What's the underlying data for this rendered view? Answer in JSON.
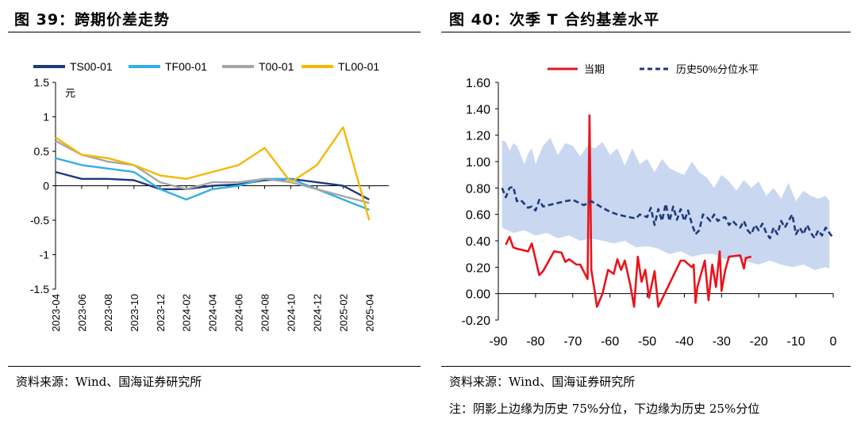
{
  "left": {
    "title": "图 39：跨期价差走势",
    "source": "资料来源：Wind、国海证券研究所"
  },
  "right": {
    "title": "图 40：次季 T 合约基差水平",
    "source": "资料来源：Wind、国海证券研究所",
    "note": "注：阴影上边缘为历史 75%分位，下边缘为历史 25%分位"
  },
  "chart_data": [
    {
      "type": "line",
      "ylabel": "元",
      "ylim": [
        -1.5,
        1.5
      ],
      "yticks": [
        "1.5",
        "1",
        "0.5",
        "0",
        "-0.5",
        "-1",
        "-1.5"
      ],
      "categories": [
        "2023-04",
        "2023-06",
        "2023-08",
        "2023-10",
        "2023-12",
        "2024-02",
        "2024-04",
        "2024-06",
        "2024-08",
        "2024-10",
        "2024-12",
        "2025-02",
        "2025-04"
      ],
      "legend_position": "top",
      "series": [
        {
          "name": "TS00-01",
          "color": "#1f3a7a",
          "values": [
            0.2,
            0.1,
            0.1,
            0.08,
            -0.05,
            -0.05,
            0.0,
            0.02,
            0.08,
            0.1,
            0.05,
            0.0,
            -0.2
          ]
        },
        {
          "name": "TF00-01",
          "color": "#33aee8",
          "values": [
            0.4,
            0.3,
            0.25,
            0.2,
            -0.05,
            -0.2,
            -0.05,
            0.0,
            0.1,
            0.1,
            -0.05,
            -0.2,
            -0.35
          ]
        },
        {
          "name": "T00-01",
          "color": "#a6a6a6",
          "values": [
            0.65,
            0.45,
            0.35,
            0.3,
            0.05,
            -0.05,
            0.05,
            0.05,
            0.1,
            0.05,
            -0.05,
            -0.15,
            -0.25
          ]
        },
        {
          "name": "TL00-01",
          "color": "#f5b800",
          "values": [
            0.7,
            0.45,
            0.4,
            0.3,
            0.15,
            0.1,
            0.2,
            0.3,
            0.55,
            0.05,
            0.3,
            0.85,
            -0.5
          ]
        }
      ]
    },
    {
      "type": "line",
      "ylim": [
        -0.2,
        1.6
      ],
      "yticks": [
        "1.60",
        "1.40",
        "1.20",
        "1.00",
        "0.80",
        "0.60",
        "0.40",
        "0.20",
        "0.00",
        "-0.20"
      ],
      "xlim": [
        -90,
        0
      ],
      "xticks": [
        "-90",
        "-80",
        "-70",
        "-60",
        "-50",
        "-40",
        "-30",
        "-20",
        "-10",
        "0"
      ],
      "legend_position": "top",
      "series": [
        {
          "name": "当期",
          "color": "#e8141c",
          "x": [
            -88,
            -87,
            -86,
            -85,
            -82,
            -81,
            -79,
            -78,
            -77,
            -75,
            -73,
            -72,
            -71,
            -69,
            -68,
            -66,
            -65.5,
            -65,
            -64,
            -63.5,
            -62,
            -60.5,
            -59,
            -58,
            -57,
            -56,
            -54.5,
            -53.5,
            -52.5,
            -51.5,
            -50.5,
            -49.5,
            -48,
            -47,
            -41,
            -40,
            -38,
            -37.5,
            -37,
            -36.5,
            -35.5,
            -34.5,
            -33.5,
            -32.5,
            -31.5,
            -30.5,
            -30,
            -29,
            -28,
            -25,
            -24,
            -23.5,
            -22
          ],
          "y": [
            0.37,
            0.43,
            0.35,
            0.34,
            0.32,
            0.38,
            0.14,
            0.17,
            0.22,
            0.32,
            0.31,
            0.24,
            0.26,
            0.22,
            0.22,
            0.11,
            1.35,
            0.18,
            0.0,
            -0.1,
            0.0,
            0.18,
            0.15,
            0.26,
            0.18,
            0.25,
            0.06,
            -0.1,
            0.28,
            0.09,
            0.18,
            -0.03,
            0.17,
            -0.1,
            0.25,
            0.25,
            0.2,
            0.22,
            -0.07,
            0.05,
            0.15,
            0.25,
            -0.05,
            0.22,
            0.05,
            0.32,
            0.02,
            0.18,
            0.28,
            0.29,
            0.19,
            0.27,
            0.28
          ]
        },
        {
          "name": "历史50%分位水平",
          "color": "#1f3a7a",
          "x": [
            -89,
            -88,
            -87,
            -86,
            -85,
            -84,
            -83,
            -82,
            -81,
            -80,
            -79,
            -78,
            -75,
            -72,
            -70,
            -67,
            -65,
            -62,
            -60,
            -58,
            -55,
            -53,
            -52,
            -50,
            -49,
            -48,
            -47,
            -46,
            -45,
            -44,
            -43,
            -42,
            -41,
            -40,
            -39,
            -38,
            -37,
            -36,
            -35,
            -34,
            -33,
            -32,
            -31,
            -30,
            -29,
            -28,
            -27,
            -26,
            -25,
            -24,
            -23,
            -22,
            -21,
            -20,
            -19,
            -18,
            -17,
            -16,
            -15,
            -14,
            -13,
            -12,
            -11,
            -10,
            -9,
            -8,
            -7,
            -6,
            -5,
            -4,
            -3,
            -2,
            -1,
            0
          ],
          "y": [
            0.8,
            0.73,
            0.8,
            0.81,
            0.7,
            0.71,
            0.68,
            0.65,
            0.66,
            0.63,
            0.71,
            0.66,
            0.68,
            0.7,
            0.71,
            0.67,
            0.7,
            0.65,
            0.62,
            0.6,
            0.58,
            0.57,
            0.6,
            0.58,
            0.65,
            0.52,
            0.64,
            0.55,
            0.68,
            0.55,
            0.66,
            0.56,
            0.64,
            0.55,
            0.63,
            0.53,
            0.45,
            0.48,
            0.6,
            0.58,
            0.55,
            0.6,
            0.55,
            0.57,
            0.58,
            0.52,
            0.55,
            0.52,
            0.5,
            0.55,
            0.48,
            0.45,
            0.52,
            0.48,
            0.53,
            0.46,
            0.42,
            0.5,
            0.45,
            0.55,
            0.5,
            0.55,
            0.6,
            0.45,
            0.5,
            0.45,
            0.52,
            0.46,
            0.42,
            0.48,
            0.44,
            0.5,
            0.46,
            0.42
          ]
        }
      ],
      "band_upper_x": [
        -89,
        -88,
        -87,
        -86,
        -85,
        -84,
        -83,
        -82,
        -81,
        -80,
        -78,
        -76,
        -74,
        -72,
        -70,
        -68,
        -66,
        -64,
        -62,
        -60,
        -58,
        -56,
        -54,
        -52,
        -50,
        -48,
        -46,
        -44,
        -42,
        -40,
        -38,
        -36,
        -34,
        -32,
        -30,
        -28,
        -26,
        -24,
        -22,
        -20,
        -18,
        -16,
        -14,
        -12,
        -10,
        -8,
        -6,
        -4,
        -2,
        -1
      ],
      "band_upper_y": [
        1.16,
        1.15,
        1.08,
        1.14,
        1.12,
        1.05,
        0.98,
        1.06,
        1.1,
        0.98,
        1.12,
        1.18,
        1.05,
        1.14,
        1.12,
        1.04,
        1.12,
        1.1,
        1.15,
        1.05,
        1.1,
        0.97,
        1.1,
        0.98,
        1.02,
        0.92,
        1.02,
        0.95,
        0.92,
        0.9,
        1.0,
        0.92,
        0.88,
        0.8,
        0.9,
        0.85,
        0.78,
        0.86,
        0.8,
        0.85,
        0.74,
        0.8,
        0.72,
        0.84,
        0.7,
        0.78,
        0.74,
        0.72,
        0.74,
        0.7
      ],
      "band_lower_x": [
        -89,
        -86,
        -83,
        -80,
        -77,
        -74,
        -71,
        -68,
        -65,
        -62,
        -59,
        -56,
        -53,
        -50,
        -47,
        -44,
        -41,
        -38,
        -35,
        -32,
        -29,
        -26,
        -23,
        -20,
        -17,
        -14,
        -11,
        -8,
        -5,
        -2,
        -1
      ],
      "band_lower_y": [
        0.5,
        0.46,
        0.48,
        0.44,
        0.46,
        0.42,
        0.44,
        0.4,
        0.42,
        0.4,
        0.38,
        0.4,
        0.35,
        0.36,
        0.34,
        0.3,
        0.32,
        0.28,
        0.3,
        0.3,
        0.26,
        0.28,
        0.24,
        0.22,
        0.25,
        0.22,
        0.2,
        0.22,
        0.18,
        0.2,
        0.19
      ]
    }
  ]
}
